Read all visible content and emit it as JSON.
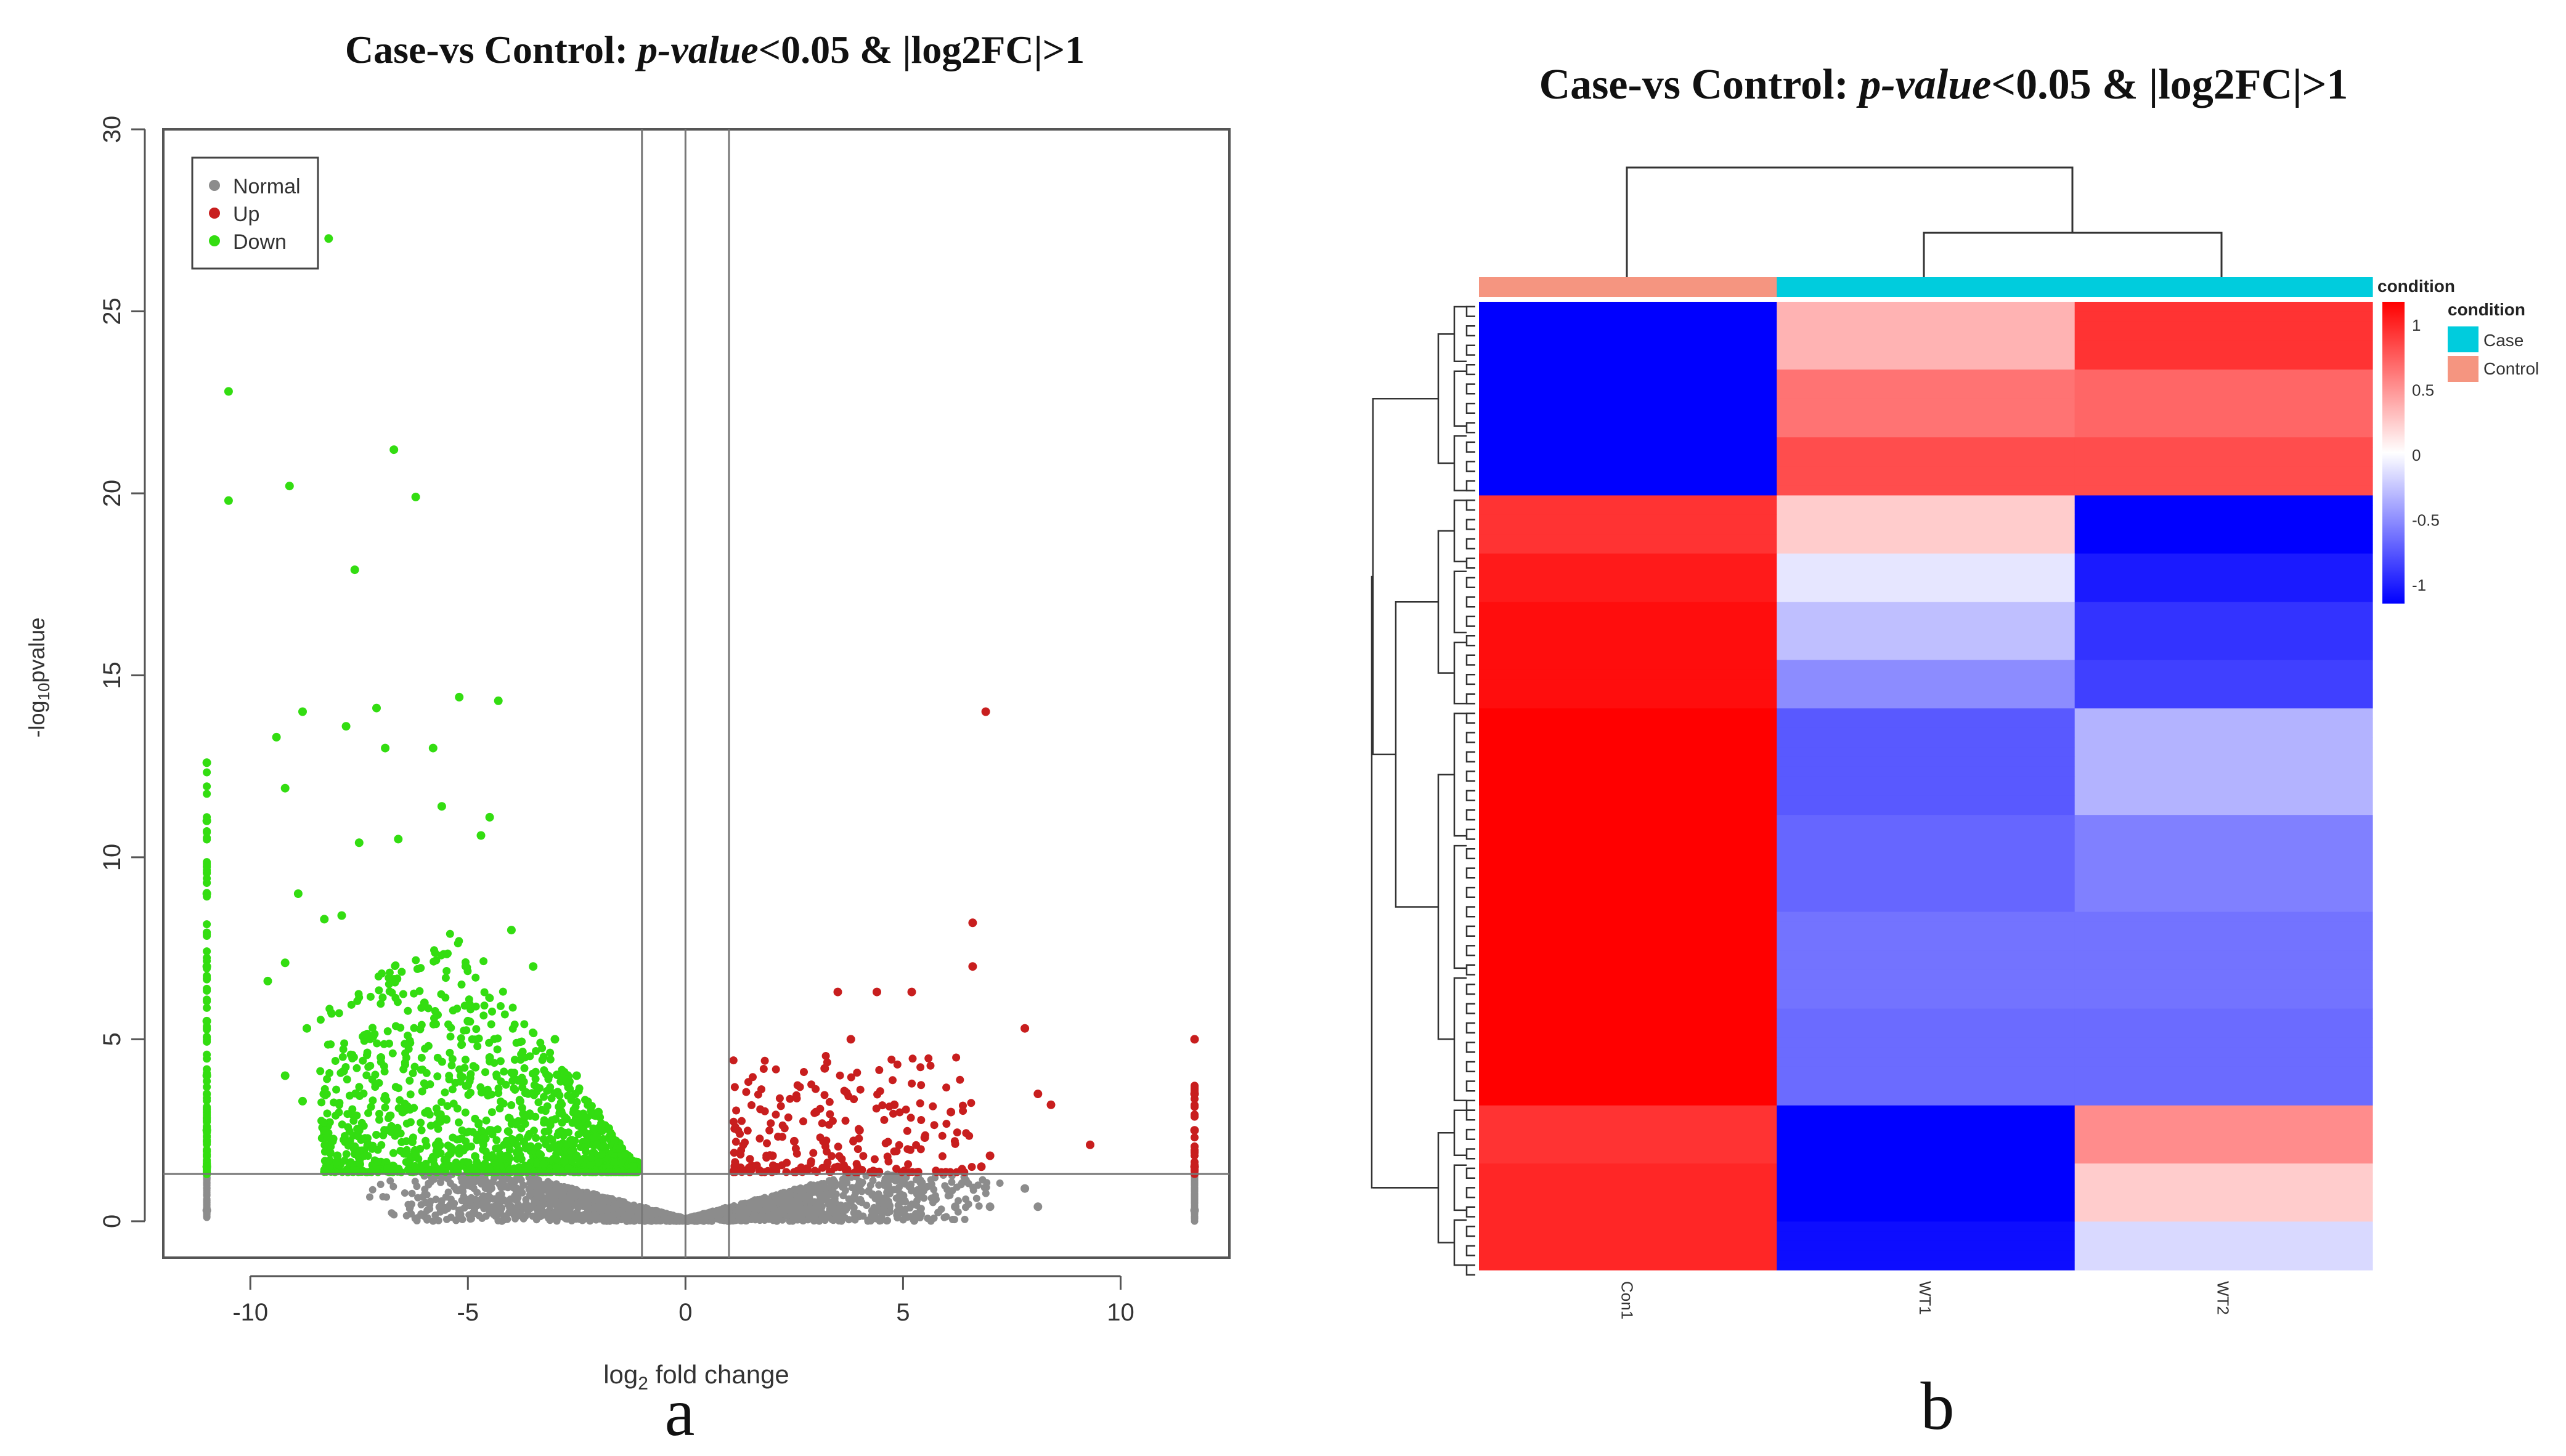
{
  "chart_data": [
    {
      "type": "scatter",
      "panel_label": "a",
      "title_prefix": "Case-vs Control: ",
      "title_italic": "p-value",
      "title_suffix": "<0.05 & |log2FC|>1",
      "xlabel_prefix": "log",
      "xlabel_sub": "2",
      "xlabel_suffix": " fold change",
      "ylabel_prefix": "-log",
      "ylabel_sub": "10",
      "ylabel_suffix": "pvalue",
      "xlim": [
        -12,
        12.5
      ],
      "ylim": [
        -1,
        30
      ],
      "x_ticks": [
        -10,
        -5,
        0,
        5,
        10
      ],
      "x_tick_labels": [
        "-10",
        "-5",
        "0",
        "5",
        "10"
      ],
      "y_ticks": [
        0,
        5,
        10,
        15,
        20,
        25,
        30
      ],
      "y_tick_labels": [
        "0",
        "5",
        "10",
        "15",
        "20",
        "25",
        "30"
      ],
      "vlines": [
        -1,
        0,
        1
      ],
      "hline": 1.3,
      "legend_position": "top-left",
      "colors": {
        "normal": "#8c8c8c",
        "up": "#c81e1e",
        "down": "#33dd11"
      },
      "series": [
        {
          "name": "Normal",
          "color_key": "normal",
          "points": [
            [
              0,
              0.05
            ],
            [
              -0.5,
              0.2
            ],
            [
              0.5,
              0.2
            ],
            [
              -1.5,
              0.5
            ],
            [
              1.5,
              0.4
            ],
            [
              -3,
              0.8
            ],
            [
              3,
              0.5
            ],
            [
              -5,
              1
            ],
            [
              5,
              0.7
            ],
            [
              6.2,
              0.4
            ],
            [
              7,
              0.4
            ],
            [
              7.8,
              0.9
            ],
            [
              8.1,
              0.4
            ],
            [
              -11,
              0.3
            ],
            [
              11.7,
              0.3
            ]
          ]
        },
        {
          "name": "Up",
          "color_key": "up",
          "points": [
            [
              1.5,
              1.4
            ],
            [
              2,
              1.8
            ],
            [
              2.5,
              2.2
            ],
            [
              3,
              3
            ],
            [
              3.2,
              4.2
            ],
            [
              3.8,
              5
            ],
            [
              3.5,
              6.3
            ],
            [
              4.4,
              6.3
            ],
            [
              5.2,
              6.3
            ],
            [
              4.8,
              3.2
            ],
            [
              4,
              2.5
            ],
            [
              5.5,
              2.3
            ],
            [
              6.1,
              3
            ],
            [
              6.6,
              8.2
            ],
            [
              6.6,
              7
            ],
            [
              6.9,
              14
            ],
            [
              7.8,
              5.3
            ],
            [
              8.1,
              3.5
            ],
            [
              8.4,
              3.2
            ],
            [
              9.3,
              2.1
            ],
            [
              7,
              1.8
            ],
            [
              6.8,
              1.5
            ],
            [
              11.7,
              5
            ],
            [
              11.7,
              3.5
            ],
            [
              11.7,
              2.5
            ],
            [
              11.7,
              1.5
            ]
          ]
        },
        {
          "name": "Down",
          "color_key": "down",
          "points": [
            [
              -8.2,
              27
            ],
            [
              -10.5,
              22.8
            ],
            [
              -6.7,
              21.2
            ],
            [
              -9.1,
              20.2
            ],
            [
              -10.5,
              19.8
            ],
            [
              -6.2,
              19.9
            ],
            [
              -7.6,
              17.9
            ],
            [
              -8.8,
              14
            ],
            [
              -7.8,
              13.6
            ],
            [
              -7.1,
              14.1
            ],
            [
              -5.2,
              14.4
            ],
            [
              -4.3,
              14.3
            ],
            [
              -9.4,
              13.3
            ],
            [
              -5.8,
              13
            ],
            [
              -6.9,
              13
            ],
            [
              -9.2,
              11.9
            ],
            [
              -5.6,
              11.4
            ],
            [
              -4.5,
              11.1
            ],
            [
              -7.5,
              10.4
            ],
            [
              -6.6,
              10.5
            ],
            [
              -4.7,
              10.6
            ],
            [
              -8.9,
              9
            ],
            [
              -7.9,
              8.4
            ],
            [
              -8.3,
              8.3
            ],
            [
              -9.2,
              7.1
            ],
            [
              -9.6,
              6.6
            ],
            [
              -8.7,
              5.3
            ],
            [
              -9.2,
              4
            ],
            [
              -8.8,
              3.3
            ],
            [
              -11,
              12.6
            ],
            [
              -11,
              11
            ],
            [
              -11,
              9
            ],
            [
              -11,
              7
            ],
            [
              -11,
              5.5
            ],
            [
              -11,
              4
            ],
            [
              -11,
              2.5
            ],
            [
              -11,
              1.5
            ],
            [
              -4,
              8
            ],
            [
              -3.5,
              7
            ],
            [
              -3,
              5
            ],
            [
              -2.5,
              4
            ],
            [
              -2,
              3
            ],
            [
              -1.5,
              2
            ],
            [
              -1.2,
              1.5
            ],
            [
              -6,
              6
            ],
            [
              -5,
              5.5
            ],
            [
              -7,
              4.5
            ],
            [
              -6.5,
              3
            ],
            [
              -7.5,
              2.5
            ],
            [
              -8,
              1.8
            ],
            [
              -4.5,
              4.5
            ],
            [
              -3.8,
              3.3
            ],
            [
              -5.5,
              2.8
            ]
          ]
        }
      ],
      "vol_scatter_counts": {
        "normal": 1900,
        "up": 240,
        "down": 1400
      }
    },
    {
      "type": "heatmap",
      "panel_label": "b",
      "title_prefix": "Case-vs Control: ",
      "title_italic": "p-value",
      "title_suffix": "<0.05 & |log2FC|>1",
      "columns": [
        "Con1",
        "WT1",
        "WT2"
      ],
      "column_conditions": [
        "Control",
        "Case",
        "Case"
      ],
      "condition_colors": {
        "Case": "#00ccdd",
        "Control": "#f59580"
      },
      "legend_title": "condition",
      "legend_entries": [
        "Case",
        "Control"
      ],
      "colorbar_title": "condition",
      "colorbar_ticks": [
        1,
        0.5,
        0,
        -0.5,
        -1
      ],
      "colorbar_tick_labels": [
        "1",
        "0.5",
        "0",
        "-0.5",
        "-1"
      ],
      "colorbar_colors": [
        "#ff0000",
        "#ffffff",
        "#0000ff"
      ],
      "row_count": 100,
      "row_blocks": [
        {
          "rows": 20,
          "values": [
            [
              -1,
              0.3,
              0.8
            ],
            [
              -1,
              0.55,
              0.6
            ],
            [
              -1,
              0.7,
              0.7
            ]
          ]
        },
        {
          "rows": 22,
          "values": [
            [
              0.8,
              0.2,
              -1
            ],
            [
              0.9,
              -0.1,
              -0.9
            ],
            [
              0.95,
              -0.25,
              -0.8
            ],
            [
              0.95,
              -0.45,
              -0.75
            ]
          ]
        },
        {
          "rows": 41,
          "values": [
            [
              1,
              -0.65,
              -0.3
            ],
            [
              1,
              -0.6,
              -0.5
            ],
            [
              1,
              -0.55,
              -0.55
            ],
            [
              1,
              -0.58,
              -0.58
            ]
          ]
        },
        {
          "rows": 17,
          "values": [
            [
              0.8,
              -1,
              0.45
            ],
            [
              0.85,
              -1,
              0.2
            ],
            [
              0.85,
              -0.95,
              -0.15
            ]
          ]
        }
      ]
    }
  ],
  "panel_labels": {
    "a": "a",
    "b": "b"
  }
}
